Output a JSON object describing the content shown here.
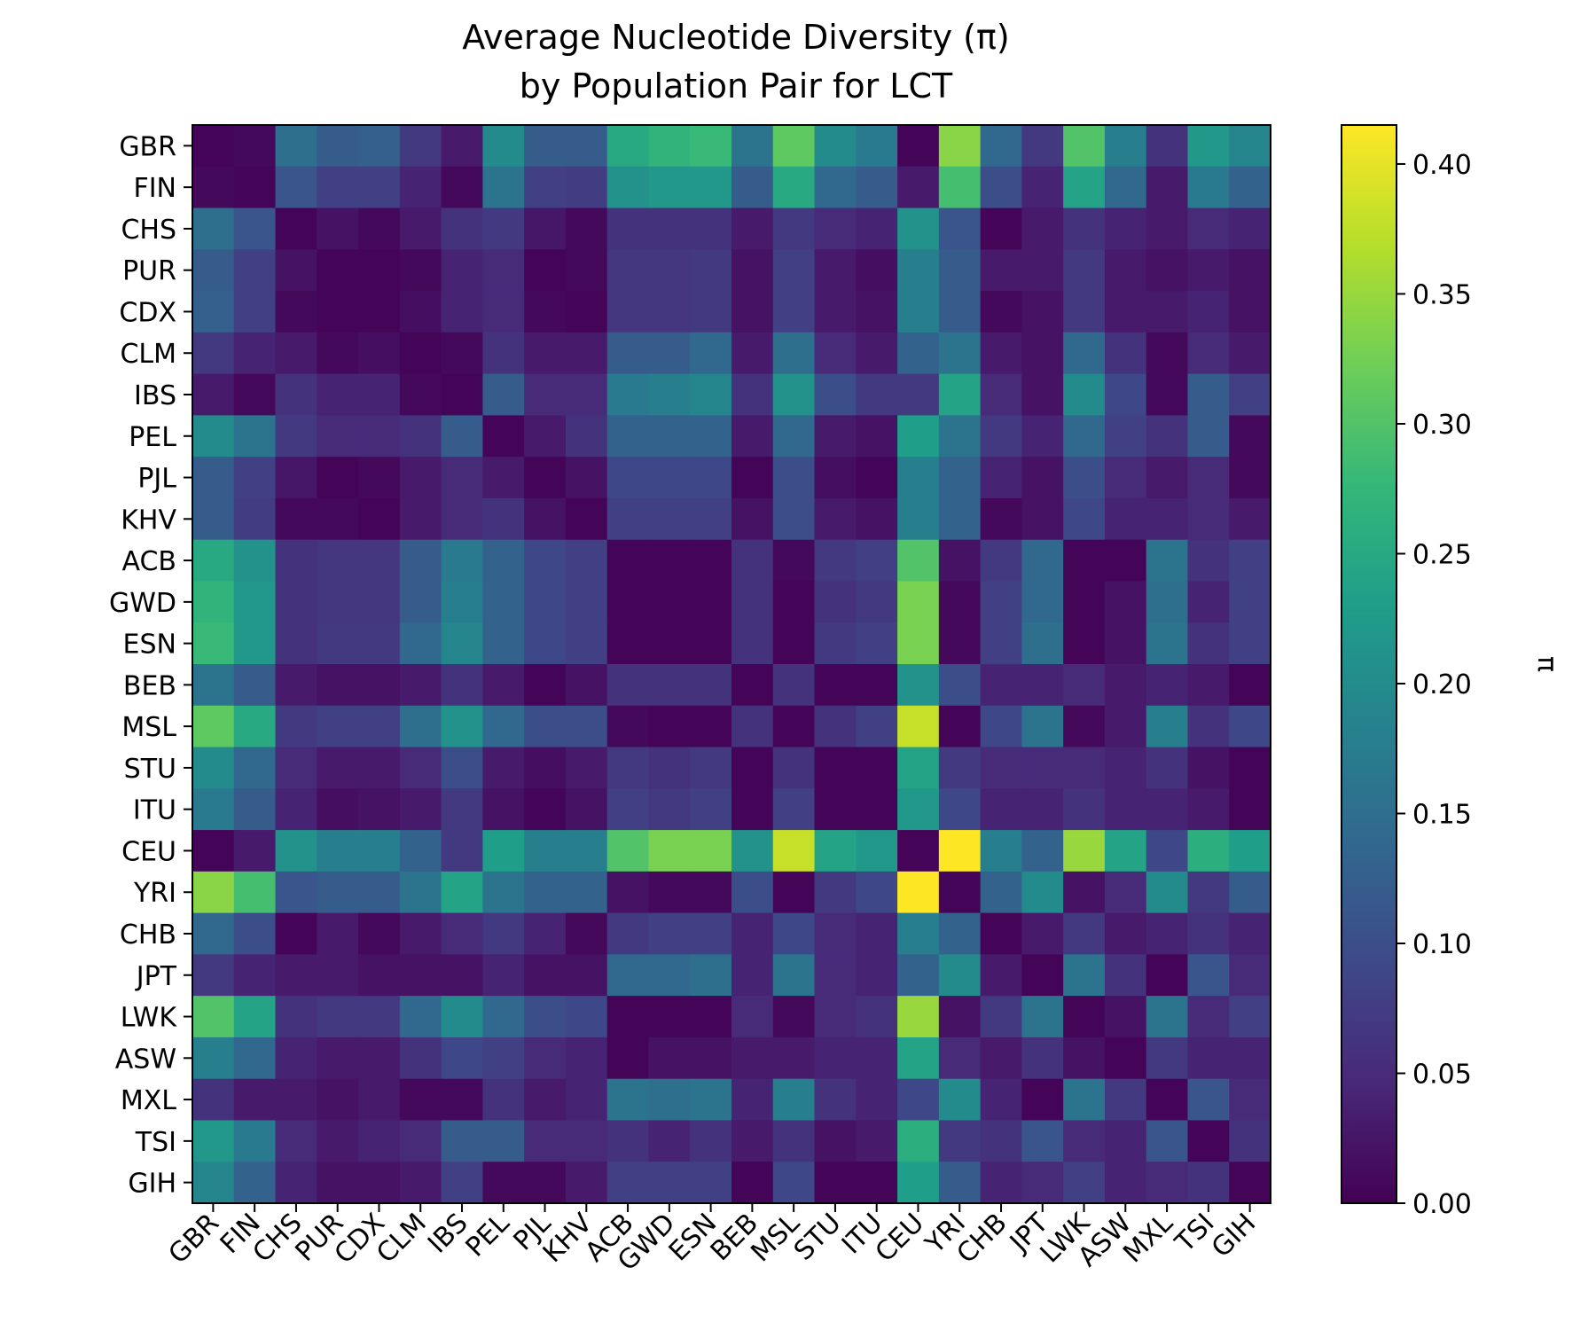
{
  "chart_data": {
    "type": "heatmap",
    "title": "Average Nucleotide Diversity (π)",
    "subtitle": "by Population Pair for LCT",
    "rows": [
      "GBR",
      "FIN",
      "CHS",
      "PUR",
      "CDX",
      "CLM",
      "IBS",
      "PEL",
      "PJL",
      "KHV",
      "ACB",
      "GWD",
      "ESN",
      "BEB",
      "MSL",
      "STU",
      "ITU",
      "CEU",
      "YRI",
      "CHB",
      "JPT",
      "LWK",
      "ASW",
      "MXL",
      "TSI",
      "GIH"
    ],
    "columns": [
      "GBR",
      "FIN",
      "CHS",
      "PUR",
      "CDX",
      "CLM",
      "IBS",
      "PEL",
      "PJL",
      "KHV",
      "ACB",
      "GWD",
      "ESN",
      "BEB",
      "MSL",
      "STU",
      "ITU",
      "CEU",
      "YRI",
      "CHB",
      "JPT",
      "LWK",
      "ASW",
      "MXL",
      "TSI",
      "GIH"
    ],
    "values": [
      [
        0.005,
        0.01,
        0.15,
        0.12,
        0.125,
        0.07,
        0.03,
        0.2,
        0.12,
        0.12,
        0.25,
        0.27,
        0.28,
        0.16,
        0.31,
        0.2,
        0.17,
        0.005,
        0.34,
        0.14,
        0.07,
        0.3,
        0.18,
        0.06,
        0.22,
        0.19
      ],
      [
        0.01,
        0.005,
        0.11,
        0.08,
        0.08,
        0.04,
        0.01,
        0.16,
        0.08,
        0.075,
        0.21,
        0.22,
        0.22,
        0.12,
        0.25,
        0.14,
        0.12,
        0.03,
        0.29,
        0.1,
        0.04,
        0.24,
        0.14,
        0.03,
        0.17,
        0.13
      ],
      [
        0.15,
        0.11,
        0.005,
        0.02,
        0.01,
        0.03,
        0.06,
        0.07,
        0.025,
        0.01,
        0.06,
        0.06,
        0.06,
        0.03,
        0.07,
        0.05,
        0.04,
        0.21,
        0.11,
        0.005,
        0.03,
        0.06,
        0.04,
        0.03,
        0.05,
        0.04
      ],
      [
        0.12,
        0.08,
        0.02,
        0.005,
        0.005,
        0.01,
        0.04,
        0.05,
        0.005,
        0.01,
        0.065,
        0.065,
        0.07,
        0.02,
        0.08,
        0.03,
        0.015,
        0.18,
        0.12,
        0.03,
        0.03,
        0.07,
        0.03,
        0.02,
        0.03,
        0.02
      ],
      [
        0.125,
        0.08,
        0.01,
        0.005,
        0.005,
        0.015,
        0.04,
        0.05,
        0.01,
        0.005,
        0.065,
        0.065,
        0.07,
        0.02,
        0.08,
        0.03,
        0.02,
        0.18,
        0.12,
        0.01,
        0.02,
        0.07,
        0.03,
        0.03,
        0.04,
        0.02
      ],
      [
        0.07,
        0.04,
        0.03,
        0.01,
        0.015,
        0.005,
        0.01,
        0.06,
        0.03,
        0.03,
        0.12,
        0.12,
        0.14,
        0.03,
        0.15,
        0.05,
        0.03,
        0.13,
        0.16,
        0.03,
        0.02,
        0.14,
        0.06,
        0.01,
        0.05,
        0.03
      ],
      [
        0.03,
        0.01,
        0.06,
        0.04,
        0.04,
        0.01,
        0.005,
        0.12,
        0.05,
        0.05,
        0.17,
        0.18,
        0.19,
        0.06,
        0.21,
        0.1,
        0.07,
        0.07,
        0.24,
        0.05,
        0.02,
        0.2,
        0.09,
        0.01,
        0.12,
        0.08
      ],
      [
        0.2,
        0.16,
        0.07,
        0.05,
        0.05,
        0.06,
        0.12,
        0.005,
        0.03,
        0.06,
        0.13,
        0.13,
        0.13,
        0.03,
        0.14,
        0.03,
        0.02,
        0.23,
        0.16,
        0.07,
        0.04,
        0.14,
        0.08,
        0.06,
        0.12,
        0.01
      ],
      [
        0.12,
        0.08,
        0.025,
        0.005,
        0.01,
        0.03,
        0.05,
        0.03,
        0.005,
        0.02,
        0.09,
        0.09,
        0.09,
        0.005,
        0.1,
        0.015,
        0.005,
        0.18,
        0.13,
        0.04,
        0.02,
        0.1,
        0.05,
        0.03,
        0.05,
        0.01
      ],
      [
        0.12,
        0.075,
        0.01,
        0.01,
        0.005,
        0.03,
        0.05,
        0.06,
        0.02,
        0.005,
        0.08,
        0.08,
        0.08,
        0.02,
        0.1,
        0.03,
        0.02,
        0.18,
        0.13,
        0.01,
        0.02,
        0.09,
        0.04,
        0.04,
        0.05,
        0.03
      ],
      [
        0.25,
        0.21,
        0.06,
        0.065,
        0.065,
        0.12,
        0.17,
        0.13,
        0.09,
        0.08,
        0.005,
        0.005,
        0.005,
        0.06,
        0.01,
        0.07,
        0.08,
        0.3,
        0.02,
        0.07,
        0.14,
        0.005,
        0.005,
        0.16,
        0.06,
        0.08
      ],
      [
        0.27,
        0.22,
        0.06,
        0.065,
        0.065,
        0.12,
        0.18,
        0.13,
        0.09,
        0.08,
        0.005,
        0.005,
        0.005,
        0.06,
        0.005,
        0.06,
        0.07,
        0.33,
        0.01,
        0.08,
        0.14,
        0.005,
        0.02,
        0.15,
        0.04,
        0.08
      ],
      [
        0.28,
        0.22,
        0.06,
        0.07,
        0.07,
        0.14,
        0.19,
        0.13,
        0.09,
        0.08,
        0.005,
        0.005,
        0.005,
        0.06,
        0.005,
        0.07,
        0.08,
        0.33,
        0.01,
        0.08,
        0.15,
        0.005,
        0.02,
        0.16,
        0.06,
        0.08
      ],
      [
        0.16,
        0.12,
        0.03,
        0.02,
        0.02,
        0.03,
        0.06,
        0.03,
        0.005,
        0.02,
        0.06,
        0.06,
        0.06,
        0.005,
        0.06,
        0.005,
        0.005,
        0.21,
        0.1,
        0.04,
        0.04,
        0.05,
        0.03,
        0.04,
        0.03,
        0.005
      ],
      [
        0.31,
        0.25,
        0.07,
        0.08,
        0.08,
        0.15,
        0.21,
        0.14,
        0.1,
        0.1,
        0.01,
        0.005,
        0.005,
        0.06,
        0.005,
        0.06,
        0.08,
        0.38,
        0.005,
        0.09,
        0.16,
        0.01,
        0.03,
        0.18,
        0.06,
        0.09
      ],
      [
        0.2,
        0.14,
        0.05,
        0.03,
        0.03,
        0.05,
        0.1,
        0.03,
        0.015,
        0.03,
        0.07,
        0.06,
        0.07,
        0.005,
        0.06,
        0.005,
        0.005,
        0.24,
        0.07,
        0.05,
        0.05,
        0.05,
        0.04,
        0.06,
        0.02,
        0.005
      ],
      [
        0.17,
        0.12,
        0.04,
        0.015,
        0.02,
        0.03,
        0.07,
        0.02,
        0.005,
        0.02,
        0.08,
        0.07,
        0.08,
        0.005,
        0.08,
        0.005,
        0.005,
        0.22,
        0.09,
        0.04,
        0.04,
        0.06,
        0.04,
        0.04,
        0.03,
        0.005
      ],
      [
        0.005,
        0.03,
        0.21,
        0.18,
        0.18,
        0.13,
        0.07,
        0.23,
        0.18,
        0.18,
        0.3,
        0.33,
        0.33,
        0.21,
        0.38,
        0.24,
        0.22,
        0.005,
        0.415,
        0.18,
        0.13,
        0.35,
        0.24,
        0.09,
        0.26,
        0.23
      ],
      [
        0.34,
        0.29,
        0.11,
        0.12,
        0.12,
        0.16,
        0.24,
        0.16,
        0.13,
        0.13,
        0.02,
        0.01,
        0.01,
        0.1,
        0.005,
        0.07,
        0.09,
        0.415,
        0.005,
        0.13,
        0.2,
        0.02,
        0.05,
        0.2,
        0.07,
        0.12
      ],
      [
        0.14,
        0.1,
        0.005,
        0.03,
        0.01,
        0.03,
        0.05,
        0.07,
        0.04,
        0.01,
        0.07,
        0.08,
        0.08,
        0.04,
        0.09,
        0.05,
        0.04,
        0.18,
        0.13,
        0.005,
        0.03,
        0.07,
        0.03,
        0.04,
        0.06,
        0.04
      ],
      [
        0.07,
        0.04,
        0.03,
        0.03,
        0.02,
        0.02,
        0.02,
        0.04,
        0.02,
        0.02,
        0.14,
        0.14,
        0.15,
        0.04,
        0.16,
        0.05,
        0.04,
        0.13,
        0.2,
        0.03,
        0.005,
        0.16,
        0.06,
        0.005,
        0.11,
        0.05
      ],
      [
        0.3,
        0.24,
        0.06,
        0.07,
        0.07,
        0.14,
        0.2,
        0.14,
        0.1,
        0.09,
        0.005,
        0.005,
        0.005,
        0.05,
        0.01,
        0.05,
        0.06,
        0.35,
        0.02,
        0.07,
        0.16,
        0.005,
        0.02,
        0.16,
        0.05,
        0.08
      ],
      [
        0.18,
        0.14,
        0.04,
        0.03,
        0.03,
        0.06,
        0.09,
        0.08,
        0.05,
        0.04,
        0.005,
        0.02,
        0.02,
        0.03,
        0.03,
        0.04,
        0.04,
        0.24,
        0.05,
        0.03,
        0.06,
        0.02,
        0.005,
        0.07,
        0.04,
        0.04
      ],
      [
        0.06,
        0.03,
        0.03,
        0.02,
        0.03,
        0.01,
        0.01,
        0.06,
        0.03,
        0.04,
        0.16,
        0.15,
        0.16,
        0.04,
        0.18,
        0.06,
        0.04,
        0.09,
        0.2,
        0.04,
        0.005,
        0.16,
        0.07,
        0.005,
        0.11,
        0.05
      ],
      [
        0.22,
        0.17,
        0.05,
        0.03,
        0.04,
        0.05,
        0.12,
        0.12,
        0.05,
        0.05,
        0.06,
        0.04,
        0.06,
        0.03,
        0.06,
        0.02,
        0.03,
        0.26,
        0.07,
        0.06,
        0.11,
        0.05,
        0.04,
        0.11,
        0.005,
        0.06
      ],
      [
        0.19,
        0.13,
        0.04,
        0.02,
        0.02,
        0.03,
        0.08,
        0.01,
        0.01,
        0.03,
        0.08,
        0.08,
        0.08,
        0.005,
        0.09,
        0.005,
        0.005,
        0.23,
        0.12,
        0.04,
        0.05,
        0.08,
        0.04,
        0.05,
        0.06,
        0.005
      ]
    ],
    "zlim": [
      0.0,
      0.415
    ],
    "colormap": "viridis",
    "colorbar_label": "π",
    "colorbar_ticks": [
      "0.00",
      "0.05",
      "0.10",
      "0.15",
      "0.20",
      "0.25",
      "0.30",
      "0.35",
      "0.40"
    ],
    "grid": false
  }
}
